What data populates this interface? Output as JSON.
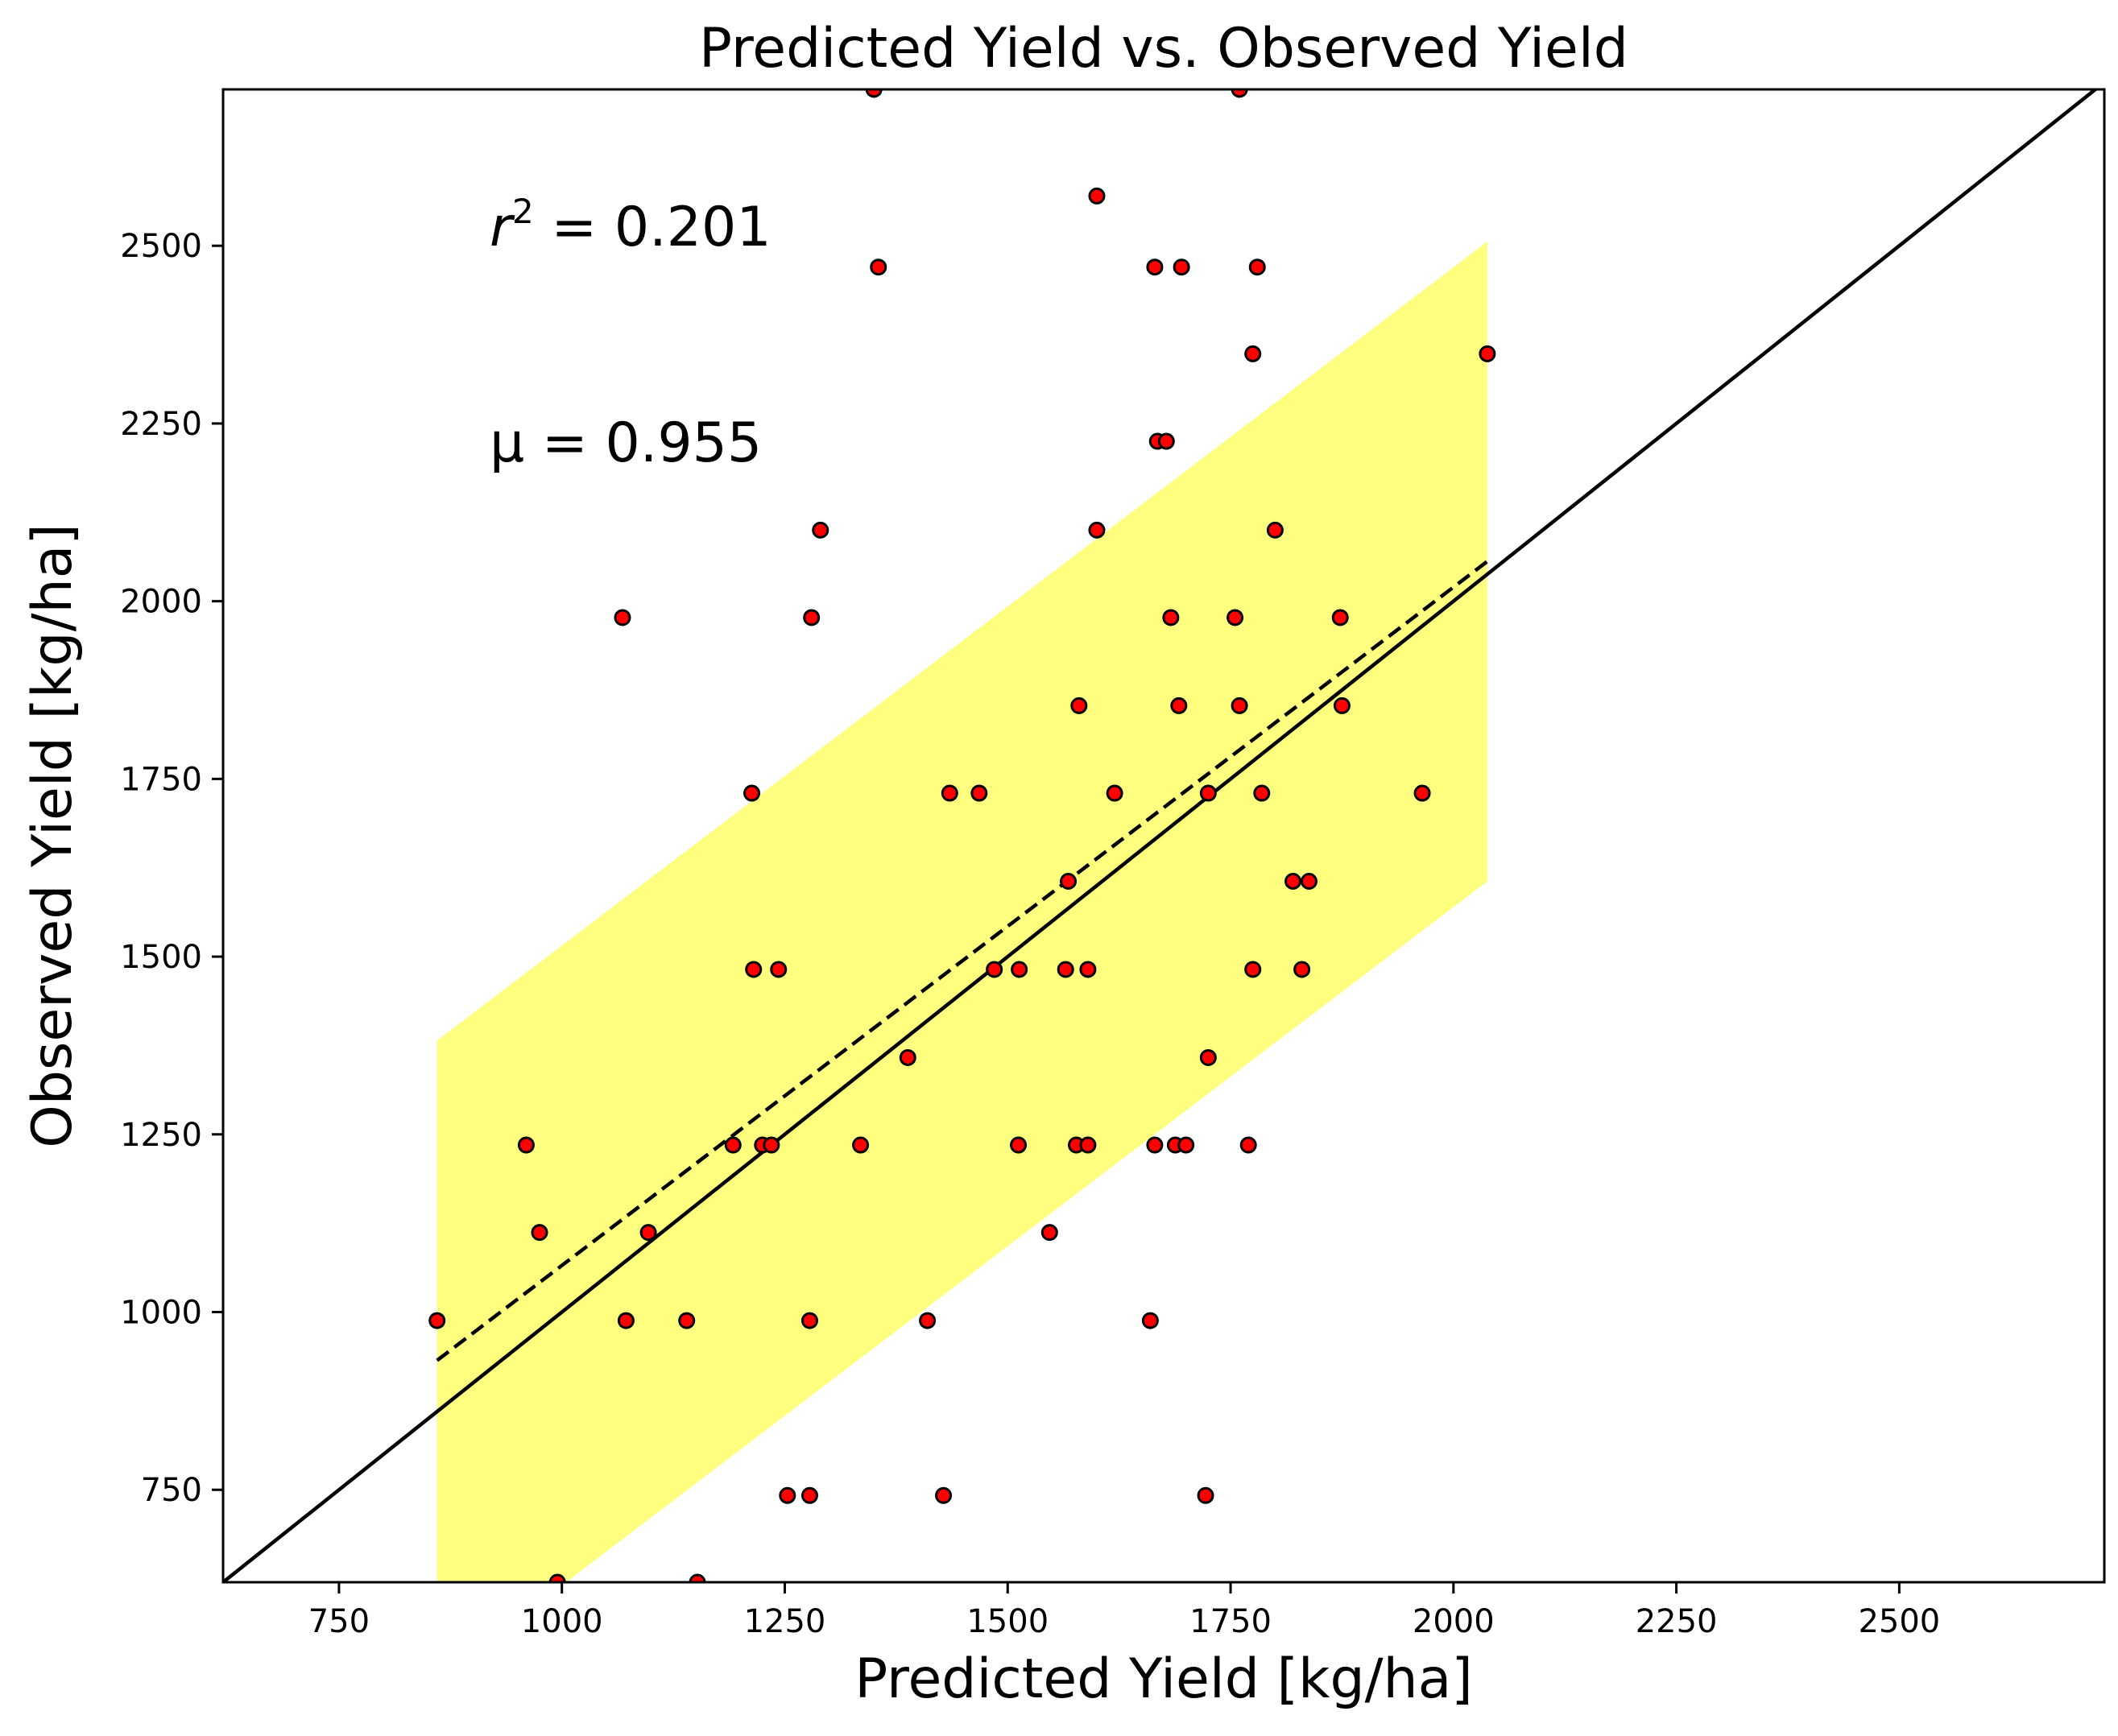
{
  "chart_data": {
    "type": "scatter",
    "title": "Predicted Yield vs. Observed Yield",
    "xlabel": "Predicted Yield [kg/ha]",
    "ylabel": "Observed Yield [kg/ha]",
    "xlim": [
      620,
      2730
    ],
    "ylim": [
      620,
      2720
    ],
    "xticks": [
      750,
      1000,
      1250,
      1500,
      1750,
      2000,
      2250,
      2500
    ],
    "yticks": [
      750,
      1000,
      1250,
      1500,
      1750,
      2000,
      2250,
      2500
    ],
    "annotations": {
      "r2_prefix": "r",
      "r2_exp": "2",
      "r2_value": " = 0.201",
      "mu": "μ = 0.955"
    },
    "one_to_one_line": [
      [
        620,
        620
      ],
      [
        2730,
        2730
      ]
    ],
    "fit_line": [
      [
        860,
        932
      ],
      [
        2038,
        2056
      ]
    ],
    "confidence_band": {
      "x": [
        860,
        2038
      ],
      "lower": [
        482,
        1606
      ],
      "upper": [
        1382,
        2506
      ],
      "color": "#ffff00",
      "opacity": 0.5
    },
    "point_color": "#ff0000",
    "points": [
      [
        1350,
        2720
      ],
      [
        1760,
        2720
      ],
      [
        1600,
        2570
      ],
      [
        1355,
        2470
      ],
      [
        1665,
        2470
      ],
      [
        1695,
        2470
      ],
      [
        1780,
        2470
      ],
      [
        1775,
        2348
      ],
      [
        2038,
        2348
      ],
      [
        1668,
        2225
      ],
      [
        1678,
        2225
      ],
      [
        1290,
        2100
      ],
      [
        1600,
        2100
      ],
      [
        1800,
        2100
      ],
      [
        1068,
        1977
      ],
      [
        1280,
        1977
      ],
      [
        1683,
        1977
      ],
      [
        1755,
        1977
      ],
      [
        1873,
        1977
      ],
      [
        1580,
        1853
      ],
      [
        1692,
        1853
      ],
      [
        1760,
        1853
      ],
      [
        1875,
        1853
      ],
      [
        1213,
        1730
      ],
      [
        1435,
        1730
      ],
      [
        1468,
        1730
      ],
      [
        1620,
        1730
      ],
      [
        1725,
        1730
      ],
      [
        1785,
        1730
      ],
      [
        1965,
        1730
      ],
      [
        1568,
        1606
      ],
      [
        1820,
        1606
      ],
      [
        1838,
        1606
      ],
      [
        1215,
        1482
      ],
      [
        1243,
        1482
      ],
      [
        1485,
        1482
      ],
      [
        1513,
        1482
      ],
      [
        1565,
        1482
      ],
      [
        1590,
        1482
      ],
      [
        1775,
        1482
      ],
      [
        1830,
        1482
      ],
      [
        1388,
        1358
      ],
      [
        1725,
        1358
      ],
      [
        960,
        1235
      ],
      [
        1192,
        1235
      ],
      [
        1225,
        1235
      ],
      [
        1235,
        1235
      ],
      [
        1335,
        1235
      ],
      [
        1512,
        1235
      ],
      [
        1577,
        1235
      ],
      [
        1590,
        1235
      ],
      [
        1665,
        1235
      ],
      [
        1688,
        1235
      ],
      [
        1700,
        1235
      ],
      [
        1770,
        1235
      ],
      [
        975,
        1112
      ],
      [
        1097,
        1112
      ],
      [
        1547,
        1112
      ],
      [
        860,
        988
      ],
      [
        1072,
        988
      ],
      [
        1140,
        988
      ],
      [
        1278,
        988
      ],
      [
        1410,
        988
      ],
      [
        1660,
        988
      ],
      [
        1253,
        742
      ],
      [
        1278,
        742
      ],
      [
        1428,
        742
      ],
      [
        1722,
        742
      ],
      [
        995,
        620
      ],
      [
        1152,
        620
      ]
    ]
  }
}
